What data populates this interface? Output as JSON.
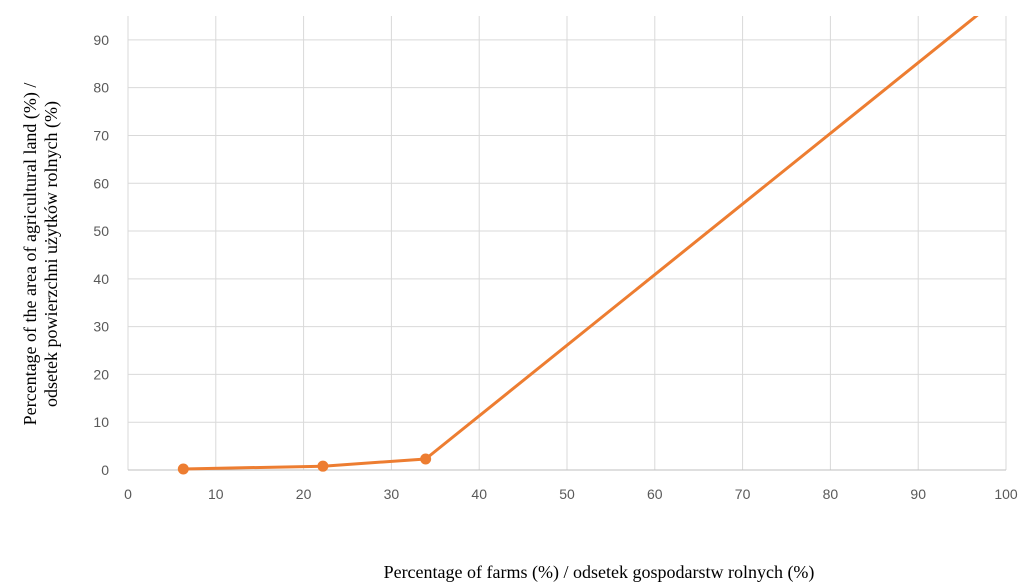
{
  "chart_data": {
    "type": "line",
    "xlabel": "Percentage of farms (%) / odsetek gospodarstw rolnych (%)",
    "ylabel_line1": "Percentage of the area of agricultural land (%) /",
    "ylabel_line2": "odsetek powierzchni użytków rolnych  (%)",
    "xlim": [
      0,
      100
    ],
    "ylim": [
      0,
      95
    ],
    "x_ticks": [
      0,
      10,
      20,
      30,
      40,
      50,
      60,
      70,
      80,
      90,
      100
    ],
    "y_ticks": [
      0,
      10,
      20,
      30,
      40,
      50,
      60,
      70,
      80,
      90
    ],
    "grid": true,
    "series": [
      {
        "color": "#ED7D31",
        "points": [
          {
            "x": 6.3,
            "y": 0.2,
            "marker": true
          },
          {
            "x": 22.2,
            "y": 0.8,
            "marker": true
          },
          {
            "x": 33.9,
            "y": 2.3,
            "marker": true
          },
          {
            "x": 100,
            "y": 100,
            "marker": false
          }
        ]
      }
    ]
  }
}
